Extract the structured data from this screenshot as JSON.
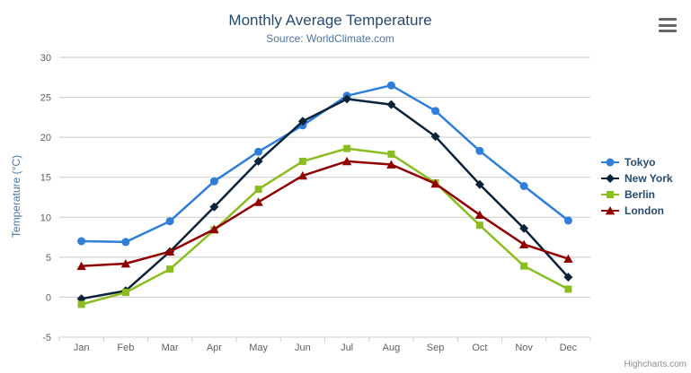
{
  "chart_data": {
    "type": "line",
    "title": "Monthly Average Temperature",
    "subtitle": "Source: WorldClimate.com",
    "categories": [
      "Jan",
      "Feb",
      "Mar",
      "Apr",
      "May",
      "Jun",
      "Jul",
      "Aug",
      "Sep",
      "Oct",
      "Nov",
      "Dec"
    ],
    "xlabel": "",
    "ylabel": "Temperature (°C)",
    "ylim": [
      -5,
      30
    ],
    "yticks": [
      -5,
      0,
      5,
      10,
      15,
      20,
      25,
      30
    ],
    "grid": true,
    "legend_position": "right",
    "series": [
      {
        "name": "Tokyo",
        "color": "#2f7ed8",
        "marker": "circle",
        "values": [
          7.0,
          6.9,
          9.5,
          14.5,
          18.2,
          21.5,
          25.2,
          26.5,
          23.3,
          18.3,
          13.9,
          9.6
        ]
      },
      {
        "name": "New York",
        "color": "#0d233a",
        "marker": "diamond",
        "values": [
          -0.2,
          0.8,
          5.7,
          11.3,
          17.0,
          22.0,
          24.8,
          24.1,
          20.1,
          14.1,
          8.6,
          2.5
        ]
      },
      {
        "name": "Berlin",
        "color": "#8bbc21",
        "marker": "square",
        "values": [
          -0.9,
          0.6,
          3.5,
          8.4,
          13.5,
          17.0,
          18.6,
          17.9,
          14.3,
          9.0,
          3.9,
          1.0
        ]
      },
      {
        "name": "London",
        "color": "#910000",
        "marker": "triangle",
        "values": [
          3.9,
          4.2,
          5.7,
          8.5,
          11.9,
          15.2,
          17.0,
          16.6,
          14.2,
          10.3,
          6.6,
          4.8
        ]
      }
    ],
    "axis_colors": {
      "grid": "#c8c8c8",
      "axis_line": "#c0d0e0",
      "labels": "#606060"
    },
    "credits": "Highcharts.com"
  }
}
